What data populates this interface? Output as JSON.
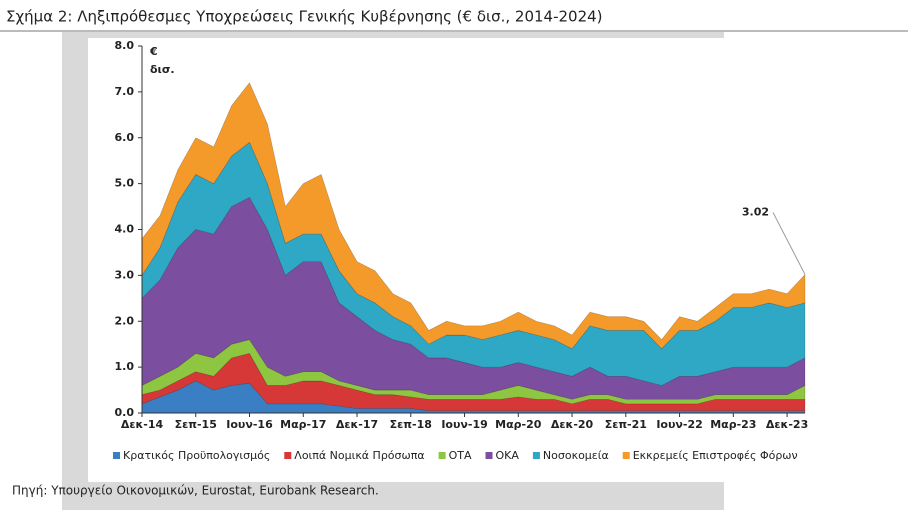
{
  "chart_data": {
    "type": "stacked_area",
    "title": "Σχήμα 2: Ληξιπρόθεσμες Υποχρεώσεις Γενικής Κυβέρνησης (€ δισ., 2014-2024)",
    "y_label_lines": [
      "€",
      "δισ."
    ],
    "source": "Πηγή: Υπουργείο Οικονομικών, Eurostat, Eurobank Research.",
    "annotation": "3.02",
    "categories": [
      "Δεκ-14",
      null,
      null,
      "Σεπ-15",
      null,
      null,
      "Ιουν-16",
      null,
      null,
      "Μαρ-17",
      null,
      null,
      "Δεκ-17",
      null,
      null,
      "Σεπ-18",
      null,
      null,
      "Ιουν-19",
      null,
      null,
      "Μαρ-20",
      null,
      null,
      "Δεκ-20",
      null,
      null,
      "Σεπ-21",
      null,
      null,
      "Ιουν-22",
      null,
      null,
      "Μαρ-23",
      null,
      null,
      "Δεκ-23",
      null
    ],
    "ylim": [
      0,
      8
    ],
    "yticks": [
      {
        "value": 0,
        "label": "0.0"
      },
      {
        "value": 1,
        "label": "1.0"
      },
      {
        "value": 2,
        "label": "2.0"
      },
      {
        "value": 3,
        "label": "3.0"
      },
      {
        "value": 4,
        "label": "4.0"
      },
      {
        "value": 5,
        "label": "5.0"
      },
      {
        "value": 6,
        "label": "6.0"
      },
      {
        "value": 7,
        "label": "7.0"
      },
      {
        "value": 8,
        "label": "8.0"
      }
    ],
    "series": [
      {
        "name": "Κρατικός Προϋπολογισμός",
        "color": "#3a7fc4",
        "values": [
          0.2,
          0.35,
          0.5,
          0.7,
          0.5,
          0.6,
          0.65,
          0.2,
          0.2,
          0.2,
          0.2,
          0.15,
          0.1,
          0.1,
          0.1,
          0.1,
          0.05,
          0.05,
          0.05,
          0.05,
          0.05,
          0.05,
          0.05,
          0.05,
          0.05,
          0.05,
          0.05,
          0.05,
          0.05,
          0.05,
          0.05,
          0.05,
          0.05,
          0.05,
          0.05,
          0.05,
          0.05,
          0.05
        ]
      },
      {
        "name": "Λοιπά Νομικά Πρόσωπα",
        "color": "#d63838",
        "values": [
          0.2,
          0.15,
          0.2,
          0.2,
          0.3,
          0.6,
          0.65,
          0.4,
          0.4,
          0.5,
          0.5,
          0.45,
          0.4,
          0.3,
          0.3,
          0.25,
          0.25,
          0.25,
          0.25,
          0.25,
          0.25,
          0.3,
          0.25,
          0.25,
          0.15,
          0.25,
          0.25,
          0.15,
          0.15,
          0.15,
          0.15,
          0.15,
          0.25,
          0.25,
          0.25,
          0.25,
          0.25,
          0.25
        ]
      },
      {
        "name": "ΟΤΑ",
        "color": "#8ec641",
        "values": [
          0.2,
          0.3,
          0.3,
          0.4,
          0.4,
          0.3,
          0.3,
          0.4,
          0.2,
          0.2,
          0.2,
          0.1,
          0.1,
          0.1,
          0.1,
          0.15,
          0.1,
          0.1,
          0.1,
          0.1,
          0.2,
          0.25,
          0.2,
          0.1,
          0.1,
          0.1,
          0.1,
          0.1,
          0.1,
          0.1,
          0.1,
          0.1,
          0.1,
          0.1,
          0.1,
          0.1,
          0.1,
          0.3
        ]
      },
      {
        "name": "ΟΚΑ",
        "color": "#7b4ea0",
        "values": [
          1.9,
          2.1,
          2.6,
          2.7,
          2.7,
          3.0,
          3.1,
          3.0,
          2.2,
          2.4,
          2.4,
          1.7,
          1.5,
          1.3,
          1.1,
          1.0,
          0.8,
          0.8,
          0.7,
          0.6,
          0.5,
          0.5,
          0.5,
          0.5,
          0.5,
          0.6,
          0.4,
          0.5,
          0.4,
          0.3,
          0.5,
          0.5,
          0.5,
          0.6,
          0.6,
          0.6,
          0.6,
          0.6
        ]
      },
      {
        "name": "Νοσοκομεία",
        "color": "#2ea8c4",
        "values": [
          0.5,
          0.7,
          1.0,
          1.2,
          1.1,
          1.1,
          1.2,
          1.0,
          0.7,
          0.6,
          0.6,
          0.7,
          0.5,
          0.6,
          0.5,
          0.4,
          0.3,
          0.5,
          0.6,
          0.6,
          0.7,
          0.7,
          0.7,
          0.7,
          0.6,
          0.9,
          1.0,
          1.0,
          1.1,
          0.8,
          1.0,
          1.0,
          1.1,
          1.3,
          1.3,
          1.4,
          1.3,
          1.2
        ]
      },
      {
        "name": "Εκκρεμείς Επιστροφές Φόρων",
        "color": "#f39a2b",
        "values": [
          0.8,
          0.7,
          0.7,
          0.8,
          0.8,
          1.1,
          1.3,
          1.3,
          0.8,
          1.1,
          1.3,
          0.9,
          0.7,
          0.7,
          0.5,
          0.5,
          0.3,
          0.3,
          0.2,
          0.3,
          0.3,
          0.4,
          0.3,
          0.3,
          0.3,
          0.3,
          0.3,
          0.3,
          0.2,
          0.2,
          0.3,
          0.2,
          0.3,
          0.3,
          0.3,
          0.3,
          0.3,
          0.62
        ]
      }
    ]
  }
}
